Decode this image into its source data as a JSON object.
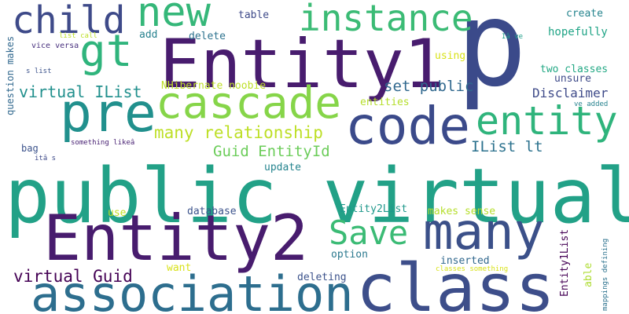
{
  "words": [
    {
      "text": "p",
      "color": "#3b4a8a"
    },
    {
      "text": "public virtual",
      "color": "#22a187"
    },
    {
      "text": "Entity2",
      "color": "#481c6e"
    },
    {
      "text": "class",
      "color": "#3d4e8a"
    },
    {
      "text": "Entity1",
      "color": "#481c6e"
    },
    {
      "text": "association",
      "color": "#2d6e8e"
    },
    {
      "text": "many",
      "color": "#3b5089"
    },
    {
      "text": "code",
      "color": "#3b4a8a"
    },
    {
      "text": "cascade",
      "color": "#86d549"
    },
    {
      "text": "pre",
      "color": "#21908d"
    },
    {
      "text": "entity",
      "color": "#2fb47c"
    },
    {
      "text": "instance",
      "color": "#3bbb75"
    },
    {
      "text": "gt",
      "color": "#2fb47c"
    },
    {
      "text": "new",
      "color": "#35b779"
    },
    {
      "text": "child",
      "color": "#3e4a89"
    },
    {
      "text": "Save",
      "color": "#3bbb75"
    },
    {
      "text": "many relationship",
      "color": "#bddf26"
    },
    {
      "text": "virtual Guid",
      "color": "#440154"
    },
    {
      "text": "virtual IList",
      "color": "#21908d"
    },
    {
      "text": "Guid EntityId",
      "color": "#6ccd5a"
    },
    {
      "text": "set public",
      "color": "#30688e"
    },
    {
      "text": "IList lt",
      "color": "#2c728e"
    },
    {
      "text": "Disclaimer",
      "color": "#3e4a89"
    },
    {
      "text": "hopefully",
      "color": "#20a486"
    },
    {
      "text": "create",
      "color": "#25848e"
    },
    {
      "text": "table",
      "color": "#3e4a89"
    },
    {
      "text": "delete",
      "color": "#2c728e"
    },
    {
      "text": "add",
      "color": "#26818e"
    },
    {
      "text": "question makes",
      "color": "#31688e"
    },
    {
      "text": "vice versa",
      "color": "#472f7d"
    },
    {
      "text": "list call",
      "color": "#bddf26"
    },
    {
      "text": "s list",
      "color": "#3b528b"
    },
    {
      "text": "NHibernate noobie",
      "color": "#bddf26"
    },
    {
      "text": "entities",
      "color": "#b5de2b"
    },
    {
      "text": "using",
      "color": "#d8e219"
    },
    {
      "text": "two classes",
      "color": "#22a884"
    },
    {
      "text": "unsure",
      "color": "#3e4a89"
    },
    {
      "text": "Iâ ve",
      "color": "#1f9e89"
    },
    {
      "text": "ve added",
      "color": "#26828e"
    },
    {
      "text": "bag",
      "color": "#3b528b"
    },
    {
      "text": "something likeâ",
      "color": "#482173"
    },
    {
      "text": "itâ s",
      "color": "#3e4a89"
    },
    {
      "text": "update",
      "color": "#25848e"
    },
    {
      "text": "use",
      "color": "#c2df23"
    },
    {
      "text": "database",
      "color": "#3b528b"
    },
    {
      "text": "Entity2List",
      "color": "#1f988b"
    },
    {
      "text": "makes sense",
      "color": "#b5de2b"
    },
    {
      "text": "option",
      "color": "#2a788e"
    },
    {
      "text": "inserted",
      "color": "#31688e"
    },
    {
      "text": "want",
      "color": "#d8e219"
    },
    {
      "text": "classes something",
      "color": "#d8e219"
    },
    {
      "text": "deleting",
      "color": "#3b528b"
    },
    {
      "text": "Entity1List",
      "color": "#440154"
    },
    {
      "text": "able",
      "color": "#addc30"
    },
    {
      "text": "mappings defining",
      "color": "#2c728e"
    }
  ]
}
